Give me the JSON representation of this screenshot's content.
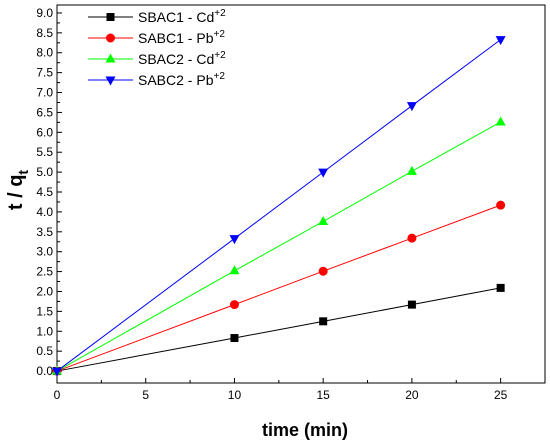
{
  "chart_data": {
    "type": "line",
    "xlabel": "time (min)",
    "ylabel": {
      "main": "t / q",
      "subscript": "t"
    },
    "xlim": [
      0,
      27.5
    ],
    "ylim": [
      -0.3,
      9.2
    ],
    "xticks": [
      0,
      5,
      10,
      15,
      20,
      25
    ],
    "yticks": [
      0.0,
      0.5,
      1.0,
      1.5,
      2.0,
      2.5,
      3.0,
      3.5,
      4.0,
      4.5,
      5.0,
      5.5,
      6.0,
      6.5,
      7.0,
      7.5,
      8.0,
      8.5,
      9.0
    ],
    "x": [
      0,
      10,
      15,
      20,
      25
    ],
    "series": [
      {
        "name": "SBAC1 - Cd",
        "superscript": "+2",
        "color": "#000000",
        "marker": "square",
        "values": [
          0,
          0.83,
          1.25,
          1.67,
          2.09
        ]
      },
      {
        "name": "SABC1 - Pb",
        "superscript": "+2",
        "color": "#ff0000",
        "marker": "circle",
        "values": [
          0,
          1.67,
          2.51,
          3.34,
          4.17
        ]
      },
      {
        "name": "SBAC2 - Cd",
        "superscript": "+2",
        "color": "#00ff00",
        "marker": "triangle-up",
        "values": [
          0,
          2.52,
          3.76,
          5.02,
          6.26
        ]
      },
      {
        "name": "SABC2 - Pb",
        "superscript": "+2",
        "color": "#0000ff",
        "marker": "triangle-down",
        "values": [
          0,
          3.33,
          5.0,
          6.67,
          8.33
        ]
      }
    ],
    "legend_position": "top-left",
    "grid": false
  }
}
